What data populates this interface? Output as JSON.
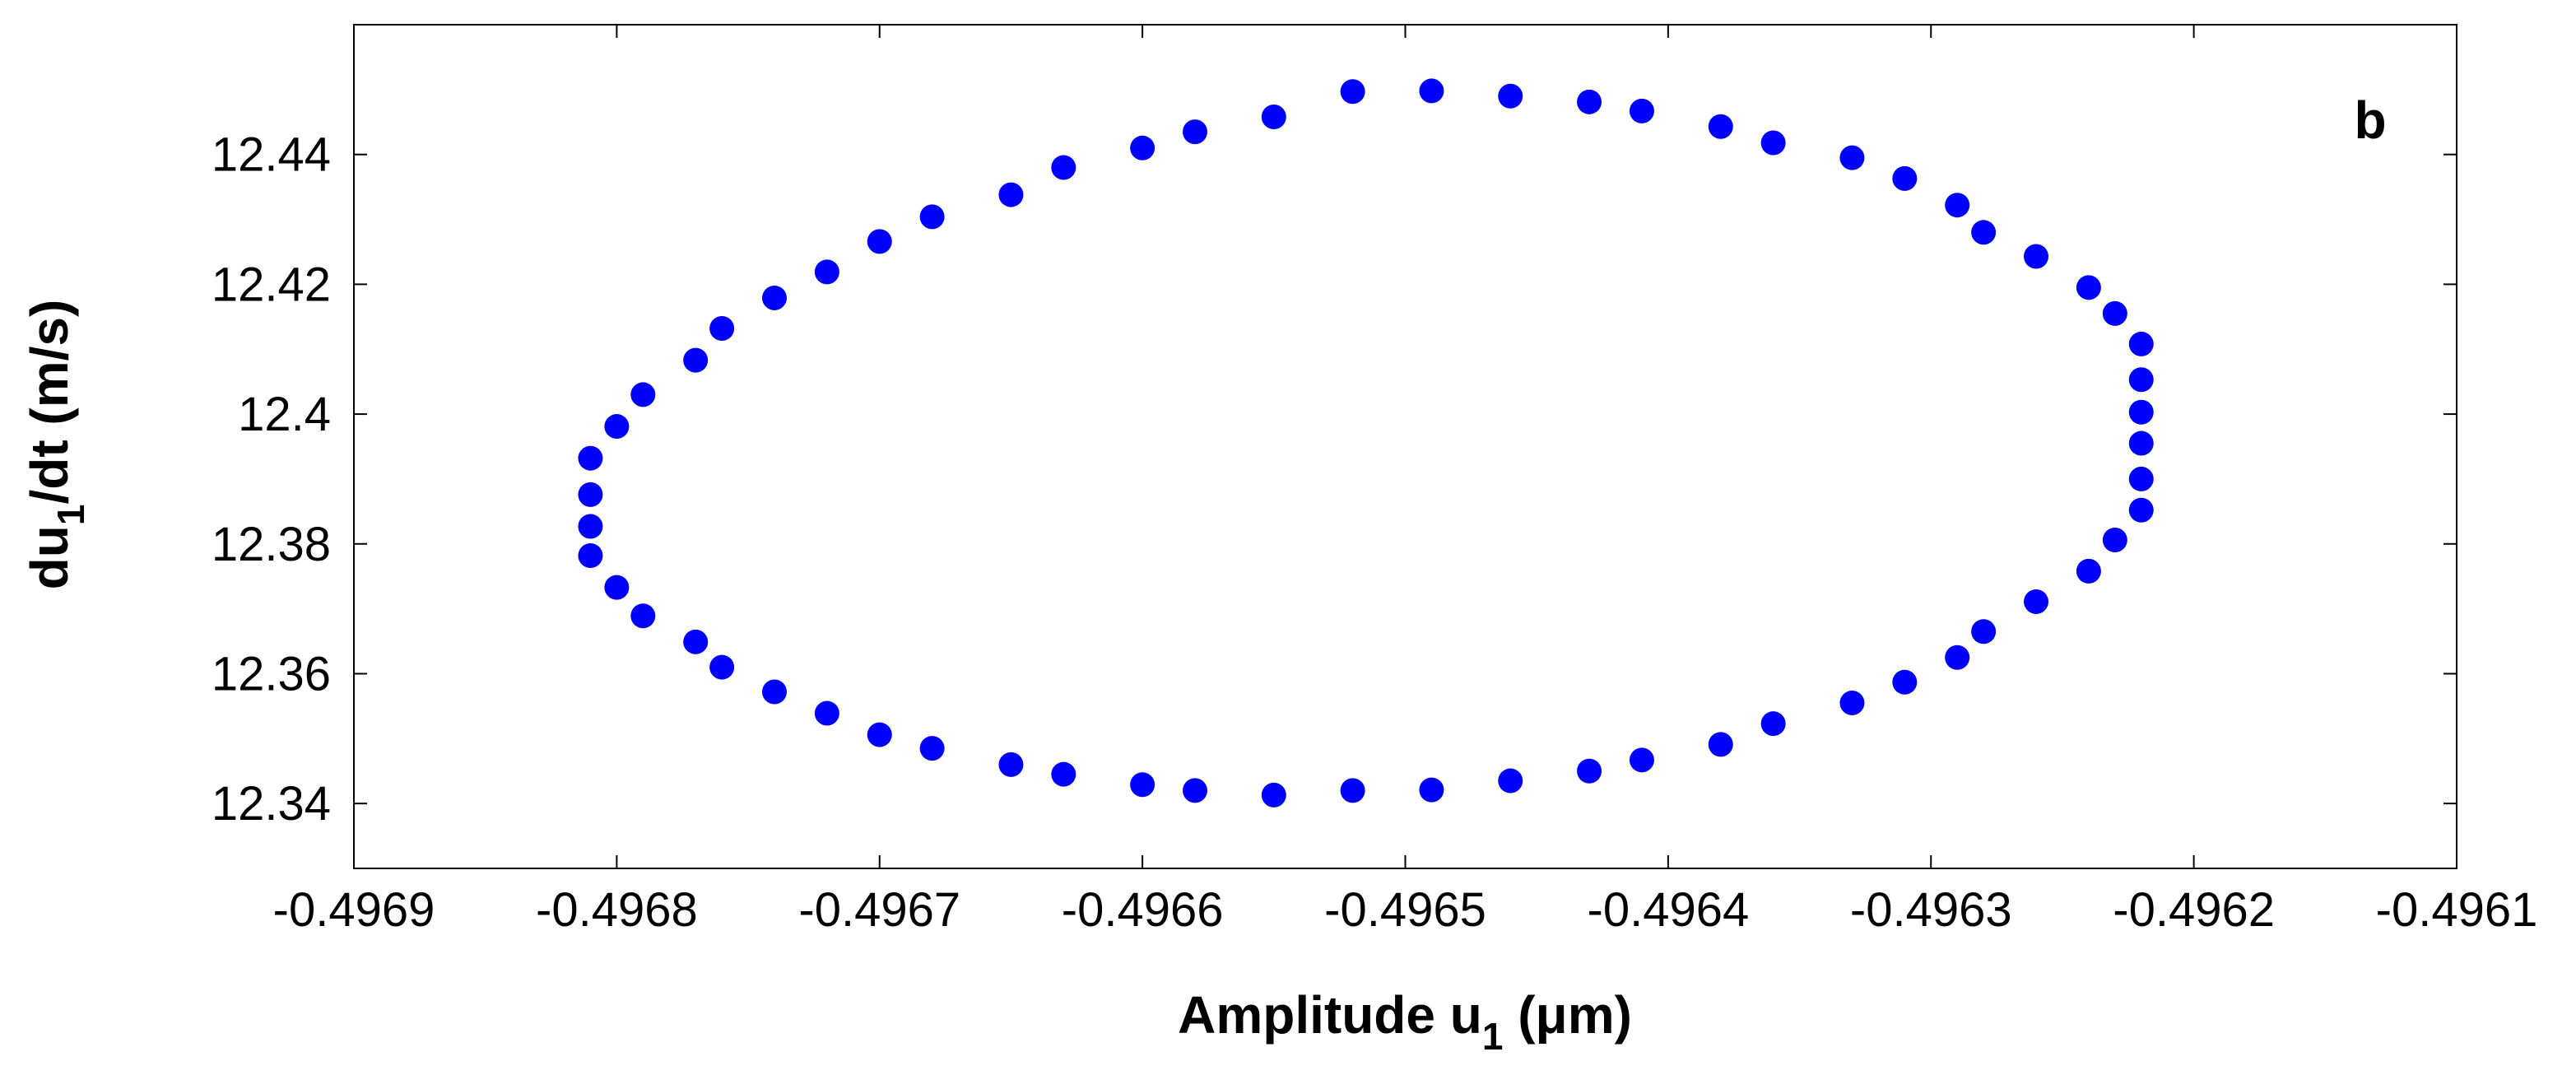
{
  "chart_data": {
    "type": "scatter",
    "panel_label": "b",
    "xlabel": {
      "main": "Amplitude u",
      "sub": "1",
      "unit": " (μm)"
    },
    "ylabel": {
      "main": "du",
      "sub": "1",
      "unit": "/dt (m/s)"
    },
    "xlim": [
      -0.4969,
      -0.4961
    ],
    "ylim": [
      12.33,
      12.46
    ],
    "xticks": [
      -0.4969,
      -0.4968,
      -0.4967,
      -0.4966,
      -0.4965,
      -0.4964,
      -0.4963,
      -0.4962,
      -0.4961
    ],
    "xtick_labels": [
      "-0.4969",
      "-0.4968",
      "-0.4967",
      "-0.4966",
      "-0.4965",
      "-0.4964",
      "-0.4963",
      "-0.4962",
      "-0.4961"
    ],
    "yticks": [
      12.34,
      12.36,
      12.38,
      12.4,
      12.42,
      12.44
    ],
    "ytick_labels": [
      "12.34",
      "12.36",
      "12.38",
      "12.4",
      "12.42",
      "12.44"
    ],
    "grid": false,
    "marker_color": "#0000ff",
    "series": [
      {
        "x": [
          -0.49652,
          -0.49649,
          -0.49646,
          -0.49643,
          -0.49641,
          -0.49638,
          -0.49636,
          -0.49633,
          -0.49631,
          -0.49629,
          -0.49628,
          -0.49626,
          -0.49624,
          -0.49623,
          -0.49622,
          -0.49622,
          -0.49622,
          -0.49622,
          -0.49622,
          -0.49622,
          -0.49623,
          -0.49624,
          -0.49626,
          -0.49628,
          -0.49629,
          -0.49631,
          -0.49633,
          -0.49636,
          -0.49638,
          -0.49641,
          -0.49643,
          -0.49646,
          -0.49649,
          -0.49652,
          -0.49655,
          -0.49658,
          -0.4966,
          -0.49663,
          -0.49665,
          -0.49668,
          -0.4967,
          -0.49672,
          -0.49674,
          -0.49676,
          -0.49677,
          -0.49679,
          -0.4968,
          -0.49681,
          -0.49681,
          -0.49681,
          -0.49681,
          -0.4968,
          -0.49679,
          -0.49677,
          -0.49676,
          -0.49674,
          -0.49672,
          -0.4967,
          -0.49668,
          -0.49665,
          -0.49663,
          -0.4966,
          -0.49658,
          -0.49655
        ],
        "y": [
          12.4497,
          12.4498,
          12.449,
          12.4481,
          12.4467,
          12.4443,
          12.4418,
          12.4395,
          12.4363,
          12.4322,
          12.428,
          12.4243,
          12.4195,
          12.4155,
          12.4108,
          12.4053,
          12.4003,
          12.3955,
          12.39,
          12.3852,
          12.3806,
          12.3758,
          12.3711,
          12.3665,
          12.3625,
          12.3587,
          12.3555,
          12.3523,
          12.3491,
          12.3467,
          12.345,
          12.3435,
          12.3421,
          12.342,
          12.3413,
          12.342,
          12.3429,
          12.3445,
          12.346,
          12.3485,
          12.3506,
          12.3539,
          12.3572,
          12.361,
          12.3649,
          12.3689,
          12.3733,
          12.3782,
          12.3827,
          12.3876,
          12.3932,
          12.3981,
          12.403,
          12.4083,
          12.4132,
          12.4179,
          12.4219,
          12.4266,
          12.4304,
          12.4338,
          12.438,
          12.441,
          12.4435,
          12.4458
        ]
      }
    ]
  }
}
